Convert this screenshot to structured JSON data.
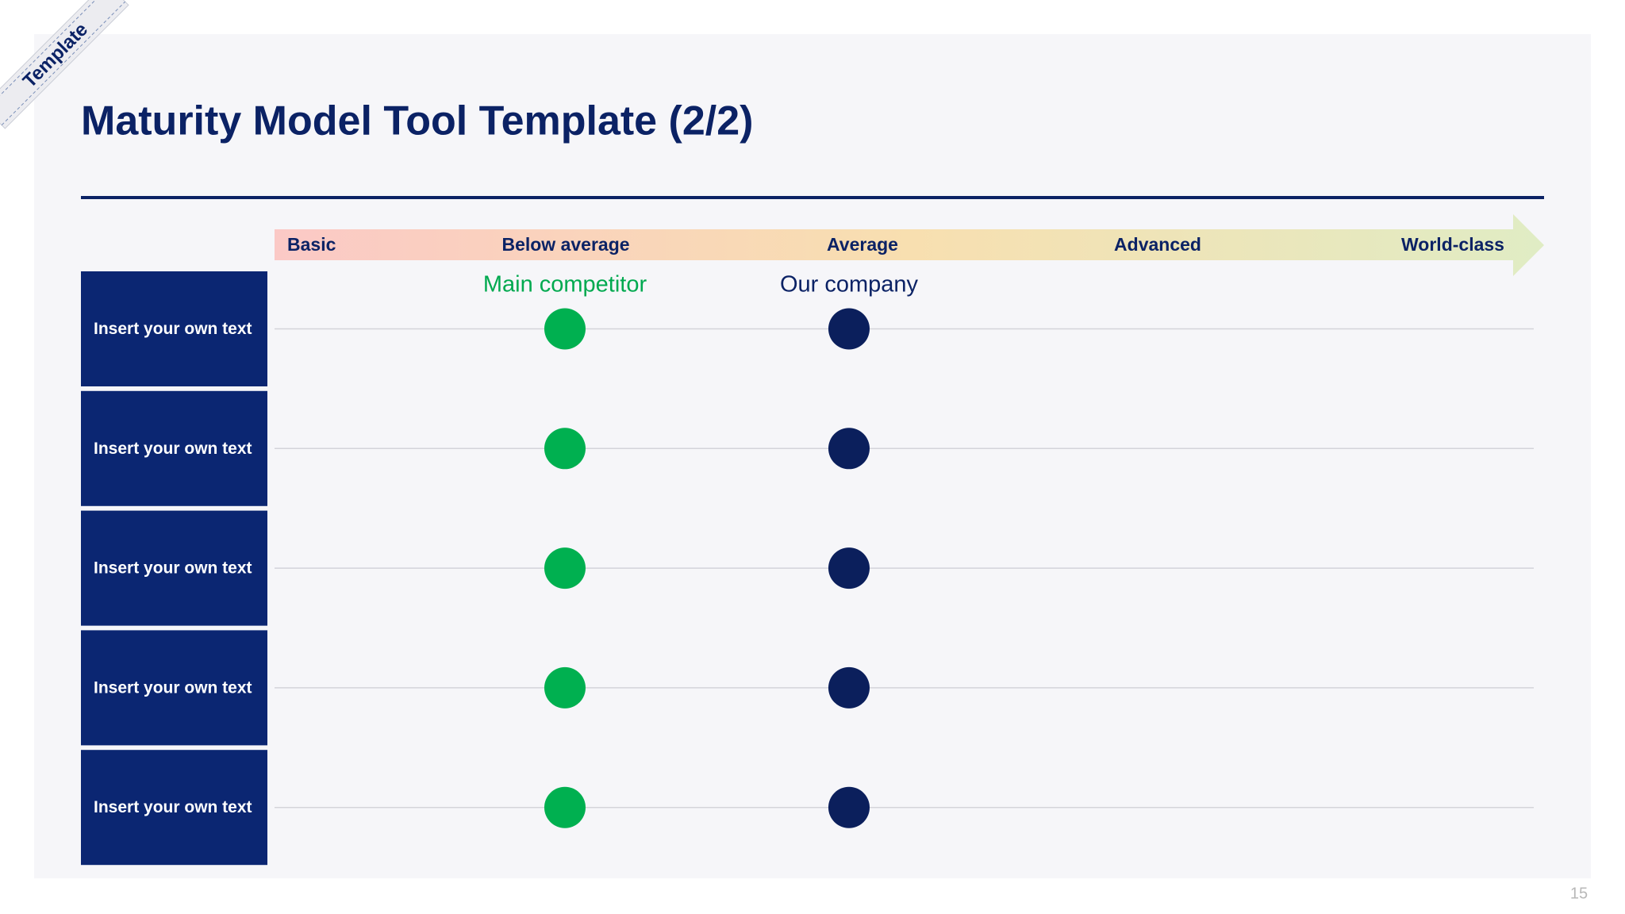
{
  "ribbon": "Template",
  "header": {
    "title": "Maturity Model Tool Template (2/2)"
  },
  "scale": {
    "levels": [
      "Basic",
      "Below average",
      "Average",
      "Advanced",
      "World-class"
    ]
  },
  "legend": {
    "competitor": "Main competitor",
    "company": "Our company"
  },
  "rows": [
    "Insert your own text",
    "Insert your own text",
    "Insert your own text",
    "Insert your own text",
    "Insert your own text"
  ],
  "footer": {
    "page_number": "15"
  }
}
